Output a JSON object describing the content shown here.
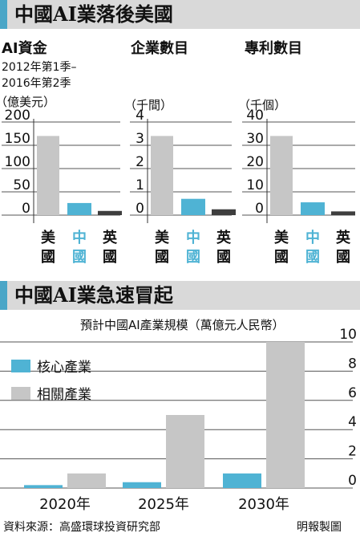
{
  "section1": {
    "title": "中國AI業落後美國",
    "panels": [
      {
        "header": "AI資金",
        "subtitle": [
          "2012年第1季–",
          "2016年第2季"
        ],
        "unit": "（億美元）"
      },
      {
        "header": "企業數目",
        "unit": "（千間）"
      },
      {
        "header": "專利數目",
        "unit": "（千個）"
      }
    ]
  },
  "section2": {
    "title": "中國AI業急速冒起",
    "unit_label": "預計中國AI產業規模（萬億元人民幣）"
  },
  "source": "資料來源：高盛環球投資研究部",
  "credit": "明報製圖",
  "colors": {
    "usa": "#c6c6c6",
    "china": "#4fb3d4",
    "uk": "#3e3e3e",
    "core": "#4fb3d4",
    "related": "#c6c6c6",
    "banner": "#d9d9d9",
    "accent": "#4aa6c7"
  },
  "chart_data": [
    {
      "type": "bar",
      "title": "AI資金",
      "categories": [
        "美國",
        "中國",
        "英國"
      ],
      "values": [
        170,
        26,
        9
      ],
      "yticks": [
        0,
        50,
        100,
        150,
        200
      ],
      "ylim": [
        0,
        200
      ]
    },
    {
      "type": "bar",
      "title": "企業數目",
      "categories": [
        "美國",
        "中國",
        "英國"
      ],
      "values": [
        3.4,
        0.7,
        0.25
      ],
      "yticks": [
        0,
        1,
        2,
        3,
        4
      ],
      "ylim": [
        0,
        4
      ]
    },
    {
      "type": "bar",
      "title": "專利數目",
      "categories": [
        "美國",
        "中國",
        "英國"
      ],
      "values": [
        34,
        5.5,
        1.6
      ],
      "yticks": [
        0,
        10,
        20,
        30,
        40
      ],
      "ylim": [
        0,
        40
      ]
    },
    {
      "type": "bar",
      "title": "預計中國AI產業規模（萬億元人民幣）",
      "categories": [
        "2020年",
        "2025年",
        "2030年"
      ],
      "series": [
        {
          "name": "核心產業",
          "values": [
            0.2,
            0.4,
            1.0
          ]
        },
        {
          "name": "相關產業",
          "values": [
            1.0,
            5.0,
            10.0
          ]
        }
      ],
      "yticks": [
        0,
        2,
        4,
        6,
        8,
        10
      ],
      "ylim": [
        0,
        10
      ],
      "legend": "top-left"
    }
  ]
}
